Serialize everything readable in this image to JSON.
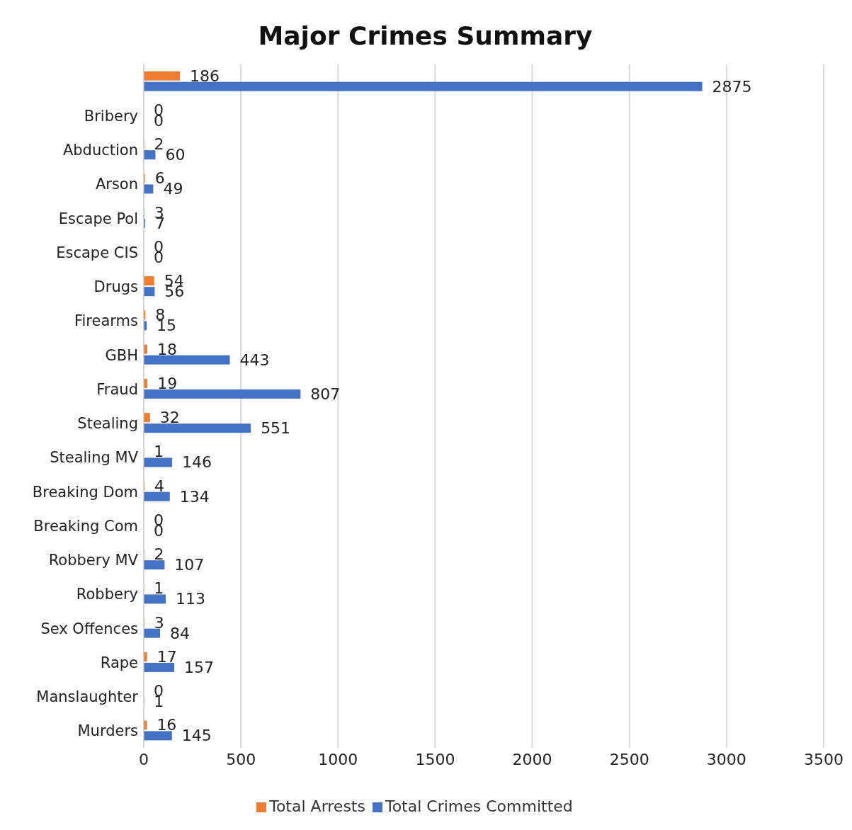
{
  "chart_data": {
    "type": "bar",
    "orientation": "horizontal",
    "title": "Major Crimes Summary",
    "categories": [
      null,
      "Bribery",
      "Abduction",
      "Arson",
      "Escape Pol",
      "Escape CIS",
      "Drugs",
      "Firearms",
      "GBH",
      "Fraud",
      "Stealing",
      "Stealing MV",
      "Breaking Dom",
      "Breaking Com",
      "Robbery MV",
      "Robbery",
      "Sex Offences",
      "Rape",
      "Manslaughter",
      "Murders"
    ],
    "series": [
      {
        "name": "Total Arrests",
        "color": "#ed7d31",
        "values": [
          186,
          0,
          2,
          6,
          3,
          0,
          54,
          8,
          18,
          19,
          32,
          1,
          4,
          0,
          2,
          1,
          3,
          17,
          0,
          16
        ]
      },
      {
        "name": "Total Crimes Committed",
        "color": "#4472c4",
        "values": [
          2875,
          0,
          60,
          49,
          7,
          0,
          56,
          15,
          443,
          807,
          551,
          146,
          134,
          0,
          107,
          113,
          84,
          157,
          1,
          145
        ]
      }
    ],
    "xlim": [
      0,
      3500
    ],
    "xticks": [
      0,
      500,
      1000,
      1500,
      2000,
      2500,
      3000,
      3500
    ],
    "grid": "x",
    "legend": "bottom",
    "data_labels": true
  }
}
